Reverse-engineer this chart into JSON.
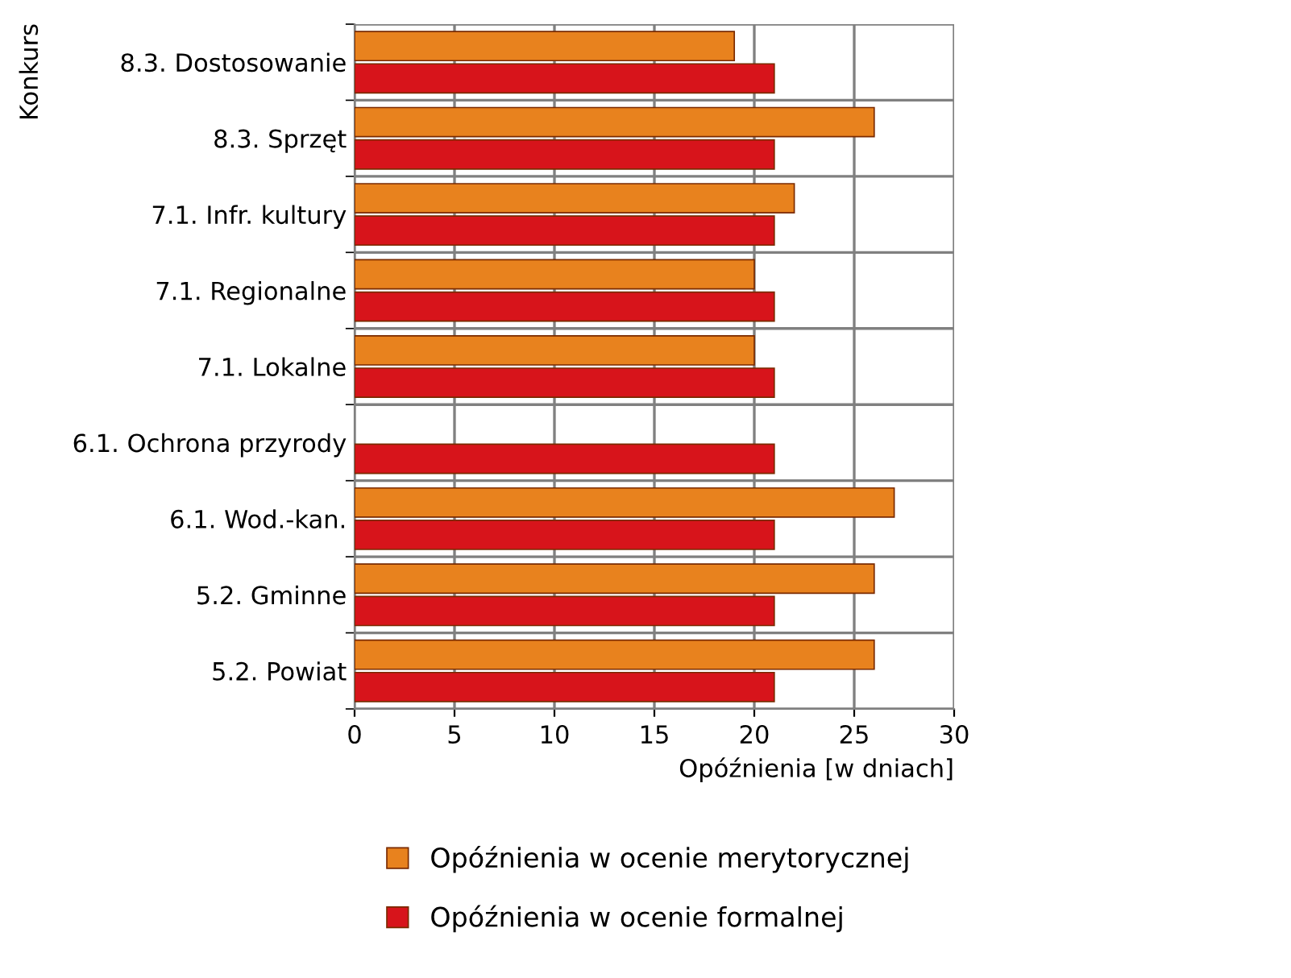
{
  "chart_data": {
    "type": "bar",
    "orientation": "horizontal",
    "xlabel": "Opóźnienia [w dniach]",
    "ylabel": "Konkurs",
    "categories": [
      "8.3. Dostosowanie",
      "8.3. Sprzęt",
      "7.1. Infr. kultury",
      "7.1. Regionalne",
      "7.1. Lokalne",
      "6.1. Ochrona przyrody",
      "6.1. Wod.-kan.",
      "5.2. Gminne",
      "5.2. Powiat"
    ],
    "series": [
      {
        "name": "Opóźnienia w ocenie merytorycznej",
        "color": "#e8821e",
        "values": [
          19,
          26,
          22,
          20,
          20,
          null,
          27,
          26,
          26
        ]
      },
      {
        "name": "Opóźnienia w ocenie formalnej",
        "color": "#d7141b",
        "values": [
          21,
          21,
          21,
          21,
          21,
          21,
          21,
          21,
          21
        ]
      }
    ],
    "xlim": [
      0,
      30
    ],
    "xticks": [
      0,
      5,
      10,
      15,
      20,
      25,
      30
    ],
    "grid": true,
    "legend": "bottom"
  }
}
